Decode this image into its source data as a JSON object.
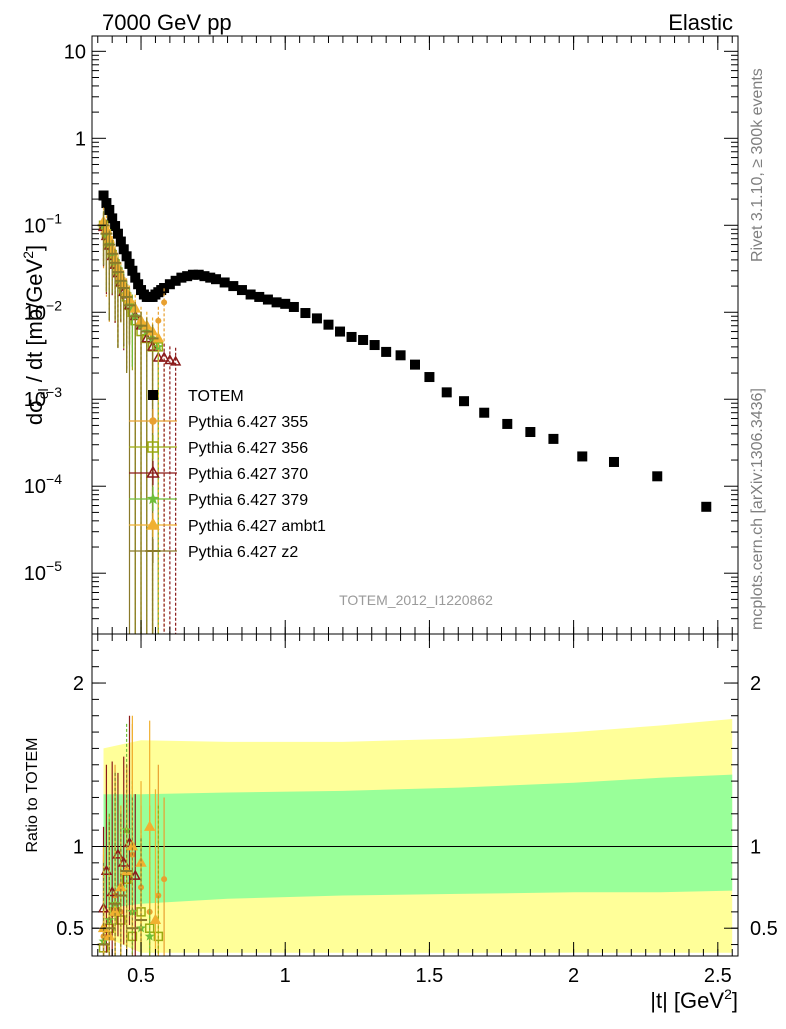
{
  "header": {
    "left": "7000 GeV pp",
    "right": "Elastic"
  },
  "side_labels": {
    "rivet": "Rivet 3.1.10, ≥ 300k events",
    "mcplots": "mcplots.cern.ch [arXiv:1306.3436]"
  },
  "watermark": "TOTEM_2012_I1220862",
  "chart_data": [
    {
      "type": "scatter",
      "panel": "main",
      "ylabel": "dσel / dt [mb/GeV2]",
      "ylabel_parts": {
        "d": "dσ",
        "sub": "el",
        "mid": " / dt [mb/GeV",
        "sup": "2",
        "end": "]"
      },
      "y_scale": "log",
      "ylim": [
        2e-06,
        15
      ],
      "xlim": [
        0.33,
        2.57
      ],
      "yticks": [
        {
          "value": 10,
          "label": "10"
        },
        {
          "value": 1,
          "label": "1"
        },
        {
          "value": 0.1,
          "base": "10",
          "exp": "−1"
        },
        {
          "value": 0.01,
          "base": "10",
          "exp": "−2"
        },
        {
          "value": 0.001,
          "base": "10",
          "exp": "−3"
        },
        {
          "value": 0.0001,
          "base": "10",
          "exp": "−4"
        },
        {
          "value": 1e-05,
          "base": "10",
          "exp": "−5"
        }
      ],
      "legend": {
        "position": "lower-left",
        "entries": [
          {
            "label": "TOTEM",
            "color": "#000000",
            "marker": "square"
          },
          {
            "label": "Pythia 6.427 355",
            "color": "#e8a030",
            "marker": "dot"
          },
          {
            "label": "Pythia 6.427 356",
            "color": "#9aab10",
            "marker": "open-square"
          },
          {
            "label": "Pythia 6.427 370",
            "color": "#8b1a1a",
            "marker": "open-triangle"
          },
          {
            "label": "Pythia 6.427 379",
            "color": "#6fbf3a",
            "marker": "star"
          },
          {
            "label": "Pythia 6.427 ambt1",
            "color": "#f0b030",
            "marker": "triangle"
          },
          {
            "label": "Pythia 6.427 z2",
            "color": "#8a7a2a",
            "marker": "line"
          }
        ]
      },
      "series": [
        {
          "name": "TOTEM",
          "color": "#000000",
          "x": [
            0.37,
            0.38,
            0.39,
            0.4,
            0.41,
            0.42,
            0.43,
            0.44,
            0.45,
            0.46,
            0.47,
            0.48,
            0.49,
            0.5,
            0.51,
            0.52,
            0.53,
            0.54,
            0.55,
            0.56,
            0.57,
            0.58,
            0.6,
            0.62,
            0.64,
            0.66,
            0.68,
            0.7,
            0.72,
            0.74,
            0.76,
            0.79,
            0.82,
            0.85,
            0.88,
            0.91,
            0.94,
            0.97,
            1.0,
            1.03,
            1.07,
            1.11,
            1.15,
            1.19,
            1.23,
            1.27,
            1.31,
            1.35,
            1.4,
            1.45,
            1.5,
            1.56,
            1.62,
            1.69,
            1.77,
            1.85,
            1.93,
            2.03,
            2.14,
            2.29,
            2.46
          ],
          "y": [
            0.22,
            0.18,
            0.15,
            0.12,
            0.098,
            0.08,
            0.065,
            0.053,
            0.044,
            0.036,
            0.03,
            0.025,
            0.021,
            0.018,
            0.016,
            0.015,
            0.015,
            0.015,
            0.016,
            0.017,
            0.018,
            0.019,
            0.021,
            0.023,
            0.025,
            0.026,
            0.027,
            0.027,
            0.026,
            0.025,
            0.024,
            0.022,
            0.02,
            0.018,
            0.016,
            0.015,
            0.014,
            0.013,
            0.0125,
            0.0115,
            0.0098,
            0.0085,
            0.0072,
            0.006,
            0.0052,
            0.0048,
            0.0042,
            0.0035,
            0.0032,
            0.0025,
            0.0018,
            0.0012,
            0.00095,
            0.0007,
            0.00052,
            0.00042,
            0.00035,
            0.00022,
            0.00019,
            0.00013,
            5.8e-05
          ]
        },
        {
          "name": "Pythia 6.427 355",
          "color": "#e8a030",
          "x": [
            0.37,
            0.38,
            0.39,
            0.4,
            0.41,
            0.42,
            0.43,
            0.44,
            0.45,
            0.46,
            0.47,
            0.48,
            0.5,
            0.52,
            0.54,
            0.56,
            0.58
          ],
          "y": [
            0.09,
            0.07,
            0.055,
            0.045,
            0.035,
            0.028,
            0.022,
            0.019,
            0.016,
            0.013,
            0.011,
            0.009,
            0.007,
            0.006,
            0.005,
            0.008,
            0.013
          ]
        },
        {
          "name": "Pythia 6.427 356",
          "color": "#9aab10",
          "x": [
            0.37,
            0.38,
            0.39,
            0.4,
            0.41,
            0.42,
            0.43,
            0.44,
            0.45,
            0.46,
            0.47,
            0.48,
            0.5,
            0.52,
            0.54,
            0.56
          ],
          "y": [
            0.1,
            0.08,
            0.06,
            0.046,
            0.036,
            0.029,
            0.022,
            0.018,
            0.015,
            0.012,
            0.01,
            0.008,
            0.006,
            0.005,
            0.004,
            0.004
          ]
        },
        {
          "name": "Pythia 6.427 370",
          "color": "#8b1a1a",
          "x": [
            0.37,
            0.38,
            0.39,
            0.4,
            0.41,
            0.42,
            0.43,
            0.44,
            0.45,
            0.46,
            0.48,
            0.5,
            0.52,
            0.54,
            0.56,
            0.58,
            0.6,
            0.62
          ],
          "y": [
            0.095,
            0.075,
            0.058,
            0.044,
            0.035,
            0.028,
            0.022,
            0.017,
            0.016,
            0.012,
            0.009,
            0.007,
            0.005,
            0.004,
            0.003,
            0.003,
            0.0028,
            0.0027
          ]
        },
        {
          "name": "Pythia 6.427 379",
          "color": "#6fbf3a",
          "x": [
            0.37,
            0.38,
            0.39,
            0.4,
            0.41,
            0.42,
            0.43,
            0.44,
            0.45,
            0.46,
            0.47,
            0.48,
            0.5,
            0.52,
            0.54,
            0.56
          ],
          "y": [
            0.1,
            0.08,
            0.062,
            0.048,
            0.038,
            0.03,
            0.024,
            0.02,
            0.016,
            0.013,
            0.011,
            0.009,
            0.007,
            0.006,
            0.005,
            0.004
          ]
        },
        {
          "name": "Pythia 6.427 ambt1",
          "color": "#f0b030",
          "x": [
            0.37,
            0.38,
            0.39,
            0.4,
            0.41,
            0.42,
            0.43,
            0.44,
            0.45,
            0.46,
            0.48,
            0.5,
            0.52,
            0.54,
            0.56
          ],
          "y": [
            0.11,
            0.09,
            0.07,
            0.052,
            0.04,
            0.032,
            0.026,
            0.021,
            0.017,
            0.014,
            0.011,
            0.008,
            0.007,
            0.006,
            0.005
          ]
        },
        {
          "name": "Pythia 6.427 z2",
          "color": "#8a7a2a",
          "x": [
            0.37,
            0.38,
            0.39,
            0.4,
            0.41,
            0.42,
            0.43,
            0.44,
            0.45,
            0.46,
            0.48,
            0.5,
            0.52,
            0.54
          ],
          "y": [
            0.1,
            0.08,
            0.06,
            0.047,
            0.037,
            0.029,
            0.023,
            0.019,
            0.015,
            0.012,
            0.009,
            0.007,
            0.006,
            0.005
          ]
        }
      ]
    },
    {
      "type": "scatter",
      "panel": "ratio",
      "ylabel": "Ratio to TOTEM",
      "xlabel": "|t| [GeV2]",
      "xlabel_parts": {
        "main": "|t| [GeV",
        "sup": "2",
        "end": "]"
      },
      "xlim": [
        0.33,
        2.57
      ],
      "ylim": [
        0.33,
        2.3
      ],
      "xticks": [
        {
          "value": 0.5,
          "label": "0.5"
        },
        {
          "value": 1,
          "label": "1"
        },
        {
          "value": 1.5,
          "label": "1.5"
        },
        {
          "value": 2,
          "label": "2"
        },
        {
          "value": 2.5,
          "label": "2.5"
        }
      ],
      "yticks": [
        {
          "value": 0.5,
          "label": "0.5"
        },
        {
          "value": 1,
          "label": "1"
        },
        {
          "value": 2,
          "label": "2"
        }
      ],
      "reference_line": 1,
      "bands": {
        "x": [
          0.37,
          0.5,
          0.8,
          1.2,
          1.6,
          2.0,
          2.3,
          2.55
        ],
        "outer_low": [
          0.45,
          0.35,
          0.35,
          0.35,
          0.35,
          0.35,
          0.35,
          0.35
        ],
        "outer_high": [
          1.6,
          1.65,
          1.64,
          1.64,
          1.66,
          1.7,
          1.74,
          1.78
        ],
        "inner_low": [
          0.62,
          0.65,
          0.68,
          0.7,
          0.71,
          0.72,
          0.72,
          0.73
        ],
        "inner_high": [
          1.32,
          1.32,
          1.33,
          1.34,
          1.36,
          1.39,
          1.42,
          1.44
        ],
        "outer_color": "#ffff99",
        "inner_color": "#99ff99"
      },
      "series": [
        {
          "name": "Pythia 6.427 355",
          "color": "#e8a030",
          "x": [
            0.37,
            0.39,
            0.41,
            0.43,
            0.45,
            0.47,
            0.5,
            0.53,
            0.56,
            0.58
          ],
          "y": [
            0.45,
            0.55,
            0.7,
            0.6,
            0.85,
            0.95,
            0.75,
            0.6,
            0.7,
            0.8
          ]
        },
        {
          "name": "Pythia 6.427 356",
          "color": "#9aab10",
          "x": [
            0.37,
            0.39,
            0.41,
            0.43,
            0.45,
            0.47,
            0.5,
            0.53,
            0.56
          ],
          "y": [
            0.38,
            0.5,
            0.6,
            0.55,
            0.8,
            0.45,
            0.6,
            0.5,
            0.45
          ]
        },
        {
          "name": "Pythia 6.427 370",
          "color": "#8b1a1a",
          "x": [
            0.37,
            0.38,
            0.4,
            0.42,
            0.44,
            0.46,
            0.48
          ],
          "y": [
            0.62,
            0.85,
            0.72,
            0.95,
            0.9,
            1.02,
            0.82
          ]
        },
        {
          "name": "Pythia 6.427 379",
          "color": "#6fbf3a",
          "x": [
            0.37,
            0.39,
            0.41,
            0.43,
            0.45,
            0.47,
            0.5,
            0.53
          ],
          "y": [
            0.42,
            0.55,
            0.65,
            0.75,
            1.1,
            0.6,
            0.5,
            0.45
          ]
        },
        {
          "name": "Pythia 6.427 ambt1",
          "color": "#f0b030",
          "x": [
            0.37,
            0.39,
            0.41,
            0.43,
            0.45,
            0.47,
            0.5,
            0.53,
            0.55
          ],
          "y": [
            0.5,
            0.45,
            0.6,
            0.75,
            0.85,
            1.0,
            0.9,
            1.12,
            0.55
          ]
        },
        {
          "name": "Pythia 6.427 z2",
          "color": "#8a7a2a",
          "x": [
            0.37,
            0.39,
            0.41,
            0.43,
            0.45,
            0.47,
            0.5
          ],
          "y": [
            0.4,
            0.5,
            0.65,
            0.7,
            0.85,
            0.5,
            0.55
          ]
        }
      ]
    }
  ]
}
